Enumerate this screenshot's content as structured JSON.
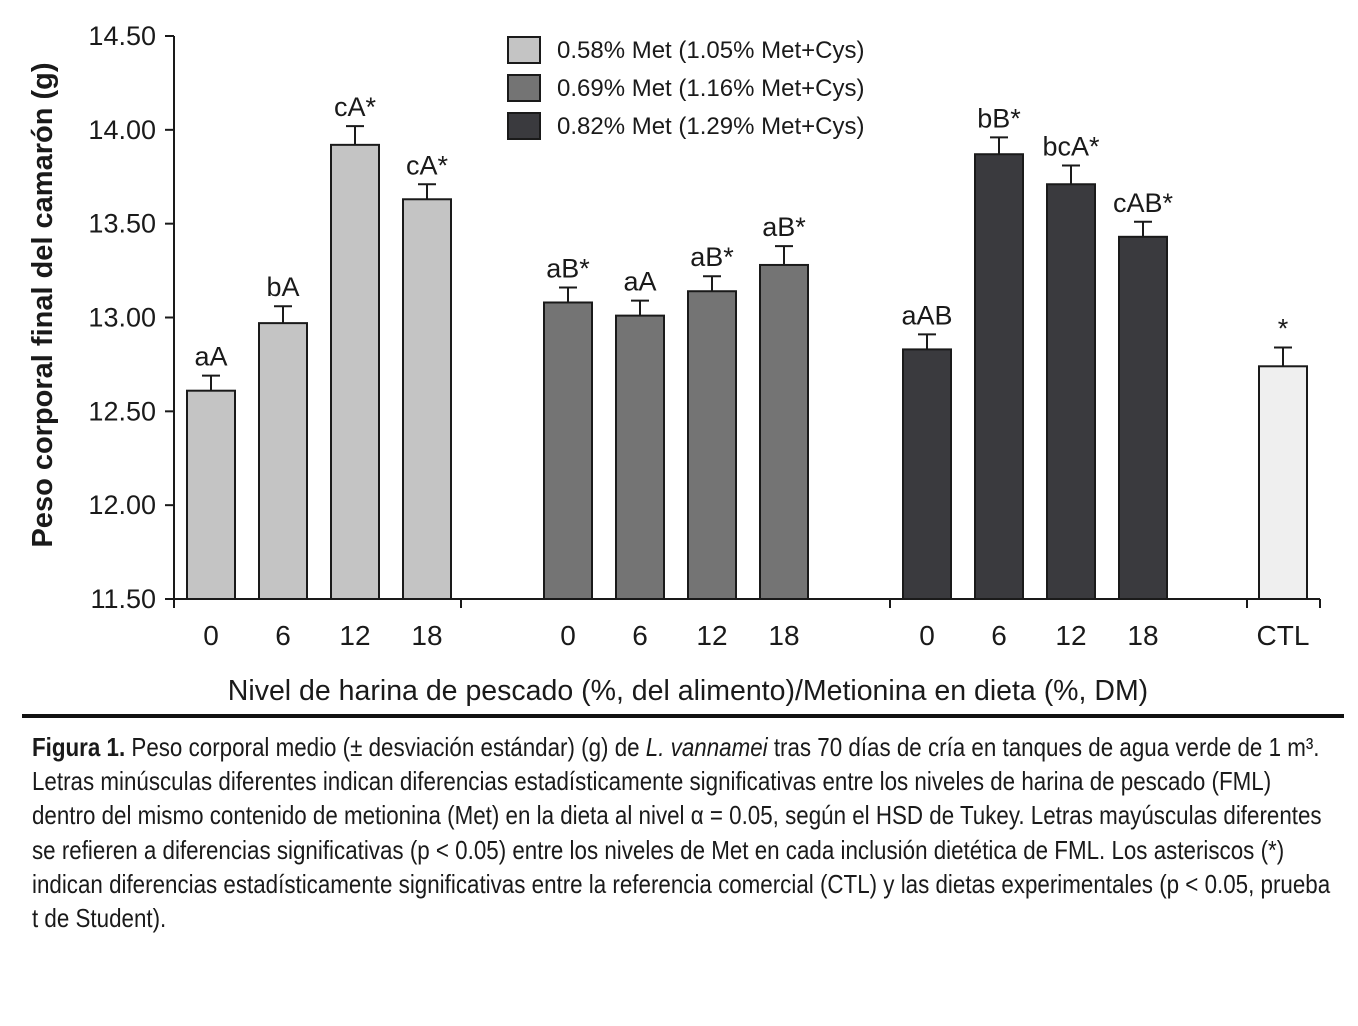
{
  "chart_data": {
    "type": "bar",
    "ylabel": "Peso corporal final del camarón (g)",
    "xlabel": "Nivel de harina de pescado (%, del alimento)/Metionina en dieta (%, DM)",
    "ylim": [
      11.5,
      14.5
    ],
    "yticks": [
      "11.50",
      "12.00",
      "12.50",
      "13.00",
      "13.50",
      "14.00",
      "14.50"
    ],
    "legend": [
      {
        "label": "0.58% Met (1.05% Met+Cys)",
        "color": "#c4c4c4"
      },
      {
        "label": "0.69% Met (1.16% Met+Cys)",
        "color": "#747474"
      },
      {
        "label": "0.82% Met (1.29% Met+Cys)",
        "color": "#3a3a3e"
      }
    ],
    "groups": [
      {
        "series": "0.58% Met (1.05% Met+Cys)",
        "color": "#c4c4c4",
        "categories": [
          "0",
          "6",
          "12",
          "18"
        ],
        "values": [
          12.61,
          12.97,
          13.92,
          13.63
        ],
        "errors": [
          0.08,
          0.09,
          0.1,
          0.08
        ],
        "labels": [
          "aA",
          "bA",
          "cA*",
          "cA*"
        ]
      },
      {
        "series": "0.69% Met (1.16% Met+Cys)",
        "color": "#747474",
        "categories": [
          "0",
          "6",
          "12",
          "18"
        ],
        "values": [
          13.08,
          13.01,
          13.14,
          13.28
        ],
        "errors": [
          0.08,
          0.08,
          0.08,
          0.1
        ],
        "labels": [
          "aB*",
          "aA",
          "aB*",
          "aB*"
        ]
      },
      {
        "series": "0.82% Met (1.29% Met+Cys)",
        "color": "#3a3a3e",
        "categories": [
          "0",
          "6",
          "12",
          "18"
        ],
        "values": [
          12.83,
          13.87,
          13.71,
          13.43
        ],
        "errors": [
          0.08,
          0.09,
          0.1,
          0.08
        ],
        "labels": [
          "aAB",
          "bB*",
          "bcA*",
          "cAB*"
        ]
      },
      {
        "series": "CTL",
        "color": "#efefef",
        "categories": [
          "CTL"
        ],
        "values": [
          12.74
        ],
        "errors": [
          0.1
        ],
        "labels": [
          "*"
        ]
      }
    ]
  },
  "caption": {
    "lead": "Figura 1.",
    "part1": " Peso corporal medio (± desviación estándar) (g) de ",
    "species": "L. vannamei",
    "part2": " tras 70 días de cría en tanques de agua verde de 1 m³. Letras minúsculas diferentes indican diferencias estadísticamente significativas entre los niveles de harina de pescado (FML) dentro del mismo contenido de metionina (Met) en la dieta al nivel α = 0.05, según el HSD de Tukey. Letras mayúsculas diferentes se refieren a diferencias significativas (p < 0.05) entre los niveles de Met en cada inclusión dietética de FML. Los asteriscos (*) indican diferencias estadísticamente significativas entre la referencia comercial (CTL) y las dietas experimentales (p < 0.05, prueba t de Student)."
  }
}
